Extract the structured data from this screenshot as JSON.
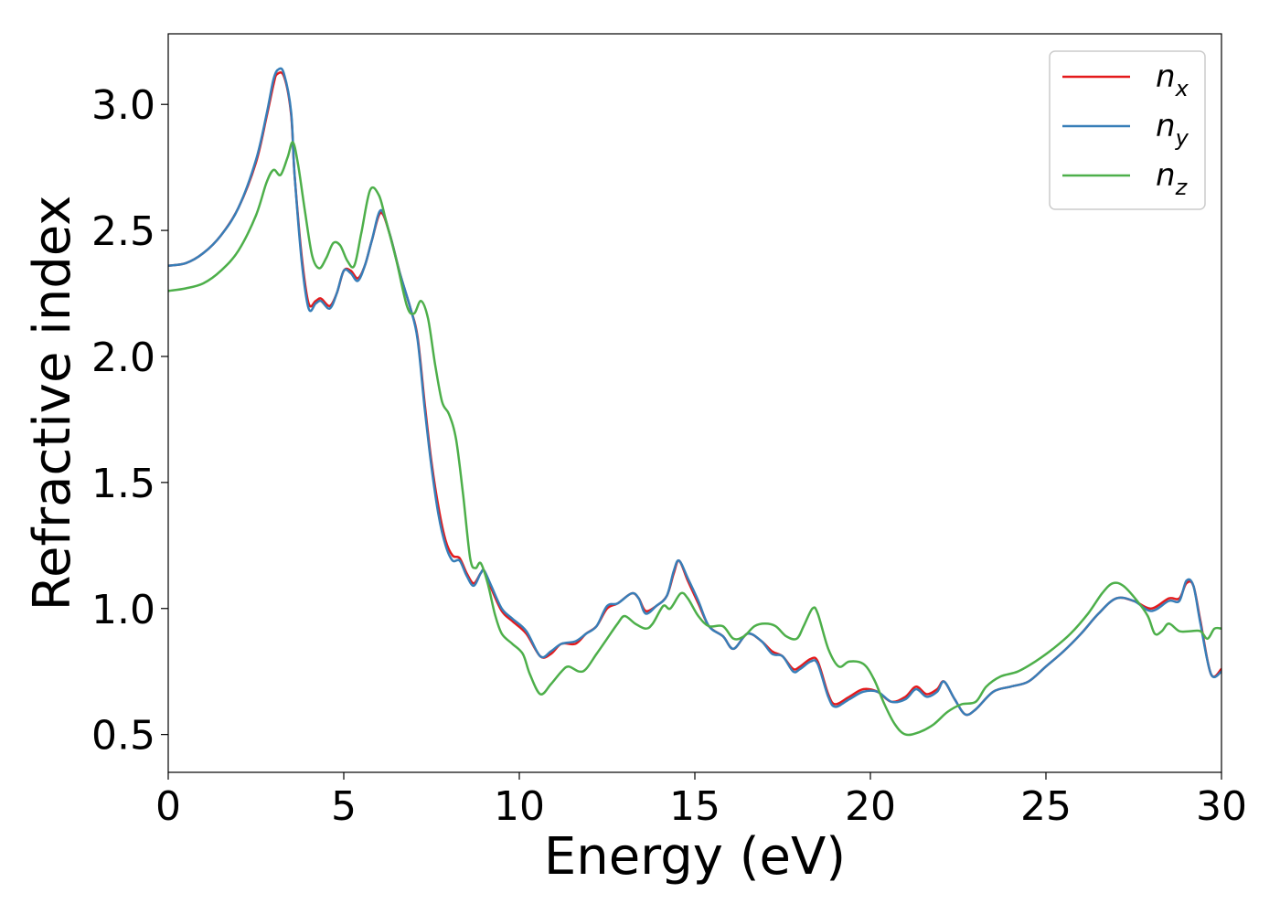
{
  "chart_data": {
    "type": "line",
    "title": "",
    "xlabel": "Energy (eV)",
    "ylabel": "Refractive index",
    "xlim": [
      0,
      30
    ],
    "ylim": [
      0.35,
      3.28
    ],
    "xticks": [
      0,
      5,
      10,
      15,
      20,
      25,
      30
    ],
    "xtick_labels": [
      "0",
      "5",
      "10",
      "15",
      "20",
      "25",
      "30"
    ],
    "yticks": [
      0.5,
      1.0,
      1.5,
      2.0,
      2.5,
      3.0
    ],
    "ytick_labels": [
      "0.5",
      "1.0",
      "1.5",
      "2.0",
      "2.5",
      "3.0"
    ],
    "grid": false,
    "legend_position": "top-right",
    "series": [
      {
        "name": "n",
        "subscript": "x",
        "color": "#e41a1c",
        "points": [
          [
            0,
            2.36
          ],
          [
            0.5,
            2.37
          ],
          [
            1,
            2.41
          ],
          [
            1.5,
            2.48
          ],
          [
            2,
            2.59
          ],
          [
            2.5,
            2.77
          ],
          [
            2.8,
            2.95
          ],
          [
            3.0,
            3.08
          ],
          [
            3.1,
            3.12
          ],
          [
            3.3,
            3.11
          ],
          [
            3.5,
            2.96
          ],
          [
            3.6,
            2.72
          ],
          [
            3.8,
            2.4
          ],
          [
            4.0,
            2.21
          ],
          [
            4.2,
            2.22
          ],
          [
            4.35,
            2.23
          ],
          [
            4.6,
            2.2
          ],
          [
            4.8,
            2.25
          ],
          [
            5.0,
            2.34
          ],
          [
            5.2,
            2.34
          ],
          [
            5.4,
            2.31
          ],
          [
            5.6,
            2.36
          ],
          [
            5.8,
            2.46
          ],
          [
            6.05,
            2.57
          ],
          [
            6.3,
            2.49
          ],
          [
            6.6,
            2.33
          ],
          [
            6.9,
            2.19
          ],
          [
            7.1,
            2.08
          ],
          [
            7.3,
            1.82
          ],
          [
            7.5,
            1.58
          ],
          [
            7.7,
            1.4
          ],
          [
            7.9,
            1.27
          ],
          [
            8.1,
            1.21
          ],
          [
            8.3,
            1.2
          ],
          [
            8.5,
            1.14
          ],
          [
            8.7,
            1.1
          ],
          [
            8.9,
            1.14
          ],
          [
            9.0,
            1.15
          ],
          [
            9.2,
            1.08
          ],
          [
            9.5,
            0.99
          ],
          [
            9.8,
            0.95
          ],
          [
            10.2,
            0.9
          ],
          [
            10.6,
            0.81
          ],
          [
            10.9,
            0.82
          ],
          [
            11.2,
            0.86
          ],
          [
            11.6,
            0.86
          ],
          [
            11.9,
            0.9
          ],
          [
            12.2,
            0.93
          ],
          [
            12.5,
            1.0
          ],
          [
            12.8,
            1.02
          ],
          [
            13.2,
            1.06
          ],
          [
            13.4,
            1.04
          ],
          [
            13.6,
            0.99
          ],
          [
            13.9,
            1.01
          ],
          [
            14.2,
            1.05
          ],
          [
            14.4,
            1.14
          ],
          [
            14.55,
            1.19
          ],
          [
            14.8,
            1.11
          ],
          [
            15.1,
            1.02
          ],
          [
            15.4,
            0.93
          ],
          [
            15.8,
            0.89
          ],
          [
            16.1,
            0.84
          ],
          [
            16.5,
            0.9
          ],
          [
            16.9,
            0.87
          ],
          [
            17.2,
            0.83
          ],
          [
            17.5,
            0.81
          ],
          [
            17.8,
            0.76
          ],
          [
            18.0,
            0.77
          ],
          [
            18.3,
            0.8
          ],
          [
            18.5,
            0.79
          ],
          [
            18.8,
            0.66
          ],
          [
            19.0,
            0.62
          ],
          [
            19.4,
            0.65
          ],
          [
            19.8,
            0.68
          ],
          [
            20.2,
            0.67
          ],
          [
            20.6,
            0.63
          ],
          [
            21.0,
            0.65
          ],
          [
            21.3,
            0.69
          ],
          [
            21.6,
            0.66
          ],
          [
            21.9,
            0.68
          ],
          [
            22.1,
            0.71
          ],
          [
            22.4,
            0.64
          ],
          [
            22.7,
            0.58
          ],
          [
            23.0,
            0.6
          ],
          [
            23.5,
            0.67
          ],
          [
            24.0,
            0.69
          ],
          [
            24.5,
            0.71
          ],
          [
            25.0,
            0.77
          ],
          [
            25.5,
            0.83
          ],
          [
            26.0,
            0.9
          ],
          [
            26.5,
            0.98
          ],
          [
            27.0,
            1.04
          ],
          [
            27.5,
            1.03
          ],
          [
            28.0,
            1.0
          ],
          [
            28.5,
            1.04
          ],
          [
            28.8,
            1.04
          ],
          [
            29.0,
            1.1
          ],
          [
            29.2,
            1.09
          ],
          [
            29.4,
            0.95
          ],
          [
            29.7,
            0.74
          ],
          [
            30.0,
            0.76
          ]
        ]
      },
      {
        "name": "n",
        "subscript": "y",
        "color": "#377eb8",
        "points": [
          [
            0,
            2.36
          ],
          [
            0.5,
            2.37
          ],
          [
            1,
            2.41
          ],
          [
            1.5,
            2.48
          ],
          [
            2,
            2.59
          ],
          [
            2.5,
            2.78
          ],
          [
            2.8,
            2.96
          ],
          [
            3.0,
            3.1
          ],
          [
            3.15,
            3.14
          ],
          [
            3.3,
            3.12
          ],
          [
            3.5,
            2.97
          ],
          [
            3.6,
            2.72
          ],
          [
            3.8,
            2.38
          ],
          [
            4.0,
            2.19
          ],
          [
            4.2,
            2.21
          ],
          [
            4.35,
            2.22
          ],
          [
            4.6,
            2.19
          ],
          [
            4.8,
            2.25
          ],
          [
            5.0,
            2.34
          ],
          [
            5.2,
            2.33
          ],
          [
            5.4,
            2.3
          ],
          [
            5.6,
            2.36
          ],
          [
            5.8,
            2.46
          ],
          [
            6.05,
            2.58
          ],
          [
            6.3,
            2.49
          ],
          [
            6.6,
            2.33
          ],
          [
            6.9,
            2.19
          ],
          [
            7.1,
            2.07
          ],
          [
            7.3,
            1.8
          ],
          [
            7.5,
            1.56
          ],
          [
            7.7,
            1.37
          ],
          [
            7.9,
            1.25
          ],
          [
            8.1,
            1.19
          ],
          [
            8.3,
            1.19
          ],
          [
            8.5,
            1.13
          ],
          [
            8.7,
            1.09
          ],
          [
            8.9,
            1.14
          ],
          [
            9.0,
            1.15
          ],
          [
            9.2,
            1.09
          ],
          [
            9.5,
            1.0
          ],
          [
            9.8,
            0.96
          ],
          [
            10.2,
            0.91
          ],
          [
            10.6,
            0.81
          ],
          [
            10.9,
            0.83
          ],
          [
            11.2,
            0.86
          ],
          [
            11.6,
            0.87
          ],
          [
            11.9,
            0.9
          ],
          [
            12.2,
            0.93
          ],
          [
            12.5,
            1.01
          ],
          [
            12.8,
            1.02
          ],
          [
            13.2,
            1.06
          ],
          [
            13.4,
            1.04
          ],
          [
            13.6,
            0.98
          ],
          [
            13.9,
            1.01
          ],
          [
            14.2,
            1.05
          ],
          [
            14.4,
            1.15
          ],
          [
            14.55,
            1.19
          ],
          [
            14.8,
            1.12
          ],
          [
            15.1,
            1.03
          ],
          [
            15.4,
            0.93
          ],
          [
            15.8,
            0.89
          ],
          [
            16.1,
            0.84
          ],
          [
            16.5,
            0.9
          ],
          [
            16.9,
            0.87
          ],
          [
            17.2,
            0.82
          ],
          [
            17.5,
            0.81
          ],
          [
            17.8,
            0.75
          ],
          [
            18.0,
            0.76
          ],
          [
            18.3,
            0.79
          ],
          [
            18.5,
            0.78
          ],
          [
            18.8,
            0.65
          ],
          [
            19.0,
            0.61
          ],
          [
            19.4,
            0.64
          ],
          [
            19.8,
            0.67
          ],
          [
            20.2,
            0.67
          ],
          [
            20.6,
            0.63
          ],
          [
            21.0,
            0.64
          ],
          [
            21.3,
            0.68
          ],
          [
            21.6,
            0.65
          ],
          [
            21.9,
            0.67
          ],
          [
            22.1,
            0.71
          ],
          [
            22.4,
            0.64
          ],
          [
            22.7,
            0.58
          ],
          [
            23.0,
            0.6
          ],
          [
            23.5,
            0.67
          ],
          [
            24.0,
            0.69
          ],
          [
            24.5,
            0.71
          ],
          [
            25.0,
            0.77
          ],
          [
            25.5,
            0.83
          ],
          [
            26.0,
            0.9
          ],
          [
            26.5,
            0.98
          ],
          [
            27.0,
            1.04
          ],
          [
            27.5,
            1.03
          ],
          [
            28.0,
            0.99
          ],
          [
            28.5,
            1.03
          ],
          [
            28.8,
            1.03
          ],
          [
            29.0,
            1.11
          ],
          [
            29.2,
            1.09
          ],
          [
            29.4,
            0.94
          ],
          [
            29.7,
            0.74
          ],
          [
            30.0,
            0.75
          ]
        ]
      },
      {
        "name": "n",
        "subscript": "z",
        "color": "#4daf4a",
        "points": [
          [
            0,
            2.26
          ],
          [
            0.5,
            2.27
          ],
          [
            1,
            2.29
          ],
          [
            1.5,
            2.34
          ],
          [
            2,
            2.42
          ],
          [
            2.5,
            2.56
          ],
          [
            2.8,
            2.69
          ],
          [
            3.0,
            2.74
          ],
          [
            3.2,
            2.72
          ],
          [
            3.4,
            2.79
          ],
          [
            3.55,
            2.85
          ],
          [
            3.7,
            2.76
          ],
          [
            3.9,
            2.57
          ],
          [
            4.1,
            2.4
          ],
          [
            4.3,
            2.35
          ],
          [
            4.5,
            2.39
          ],
          [
            4.7,
            2.45
          ],
          [
            4.9,
            2.44
          ],
          [
            5.1,
            2.38
          ],
          [
            5.3,
            2.36
          ],
          [
            5.5,
            2.49
          ],
          [
            5.75,
            2.66
          ],
          [
            6.0,
            2.64
          ],
          [
            6.2,
            2.54
          ],
          [
            6.5,
            2.38
          ],
          [
            6.8,
            2.2
          ],
          [
            7.0,
            2.17
          ],
          [
            7.2,
            2.22
          ],
          [
            7.4,
            2.15
          ],
          [
            7.6,
            1.97
          ],
          [
            7.8,
            1.82
          ],
          [
            8.0,
            1.77
          ],
          [
            8.2,
            1.67
          ],
          [
            8.4,
            1.45
          ],
          [
            8.6,
            1.2
          ],
          [
            8.75,
            1.16
          ],
          [
            8.9,
            1.18
          ],
          [
            9.1,
            1.1
          ],
          [
            9.3,
            0.98
          ],
          [
            9.5,
            0.9
          ],
          [
            9.8,
            0.86
          ],
          [
            10.1,
            0.82
          ],
          [
            10.3,
            0.74
          ],
          [
            10.6,
            0.66
          ],
          [
            10.9,
            0.7
          ],
          [
            11.2,
            0.75
          ],
          [
            11.4,
            0.77
          ],
          [
            11.7,
            0.75
          ],
          [
            11.9,
            0.76
          ],
          [
            12.2,
            0.82
          ],
          [
            12.5,
            0.88
          ],
          [
            12.8,
            0.94
          ],
          [
            13.0,
            0.97
          ],
          [
            13.3,
            0.94
          ],
          [
            13.6,
            0.92
          ],
          [
            13.8,
            0.94
          ],
          [
            14.1,
            1.01
          ],
          [
            14.3,
            1.0
          ],
          [
            14.6,
            1.06
          ],
          [
            14.8,
            1.04
          ],
          [
            15.1,
            0.97
          ],
          [
            15.4,
            0.93
          ],
          [
            15.8,
            0.93
          ],
          [
            16.1,
            0.88
          ],
          [
            16.4,
            0.89
          ],
          [
            16.7,
            0.93
          ],
          [
            17.0,
            0.94
          ],
          [
            17.3,
            0.93
          ],
          [
            17.6,
            0.89
          ],
          [
            17.9,
            0.88
          ],
          [
            18.1,
            0.93
          ],
          [
            18.35,
            1.0
          ],
          [
            18.5,
            0.98
          ],
          [
            18.8,
            0.84
          ],
          [
            19.1,
            0.77
          ],
          [
            19.4,
            0.79
          ],
          [
            19.8,
            0.78
          ],
          [
            20.1,
            0.72
          ],
          [
            20.4,
            0.62
          ],
          [
            20.7,
            0.54
          ],
          [
            21.0,
            0.5
          ],
          [
            21.4,
            0.51
          ],
          [
            21.8,
            0.54
          ],
          [
            22.2,
            0.59
          ],
          [
            22.6,
            0.62
          ],
          [
            23.0,
            0.63
          ],
          [
            23.3,
            0.69
          ],
          [
            23.7,
            0.73
          ],
          [
            24.2,
            0.75
          ],
          [
            24.7,
            0.79
          ],
          [
            25.2,
            0.84
          ],
          [
            25.7,
            0.9
          ],
          [
            26.2,
            0.98
          ],
          [
            26.6,
            1.06
          ],
          [
            26.9,
            1.1
          ],
          [
            27.2,
            1.09
          ],
          [
            27.6,
            1.03
          ],
          [
            27.9,
            0.97
          ],
          [
            28.1,
            0.9
          ],
          [
            28.3,
            0.91
          ],
          [
            28.5,
            0.94
          ],
          [
            28.8,
            0.91
          ],
          [
            29.1,
            0.91
          ],
          [
            29.4,
            0.91
          ],
          [
            29.6,
            0.88
          ],
          [
            29.8,
            0.92
          ],
          [
            30.0,
            0.92
          ]
        ]
      }
    ]
  }
}
